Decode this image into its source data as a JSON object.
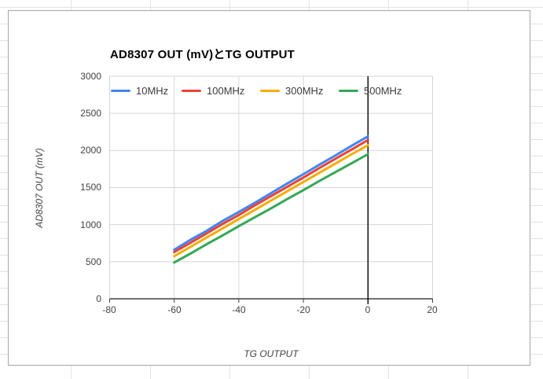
{
  "sheet": {
    "grid_color": "#e3e3e3",
    "chart_border_color": "#a6a6a6"
  },
  "chart": {
    "title": "AD8307 OUT (mV)とTG OUTPUT",
    "x_axis_title": "TG OUTPUT",
    "y_axis_title": "AD8307 OUT (mV)"
  },
  "chart_data": {
    "type": "line",
    "title": "AD8307 OUT (mV)とTG OUTPUT",
    "xlabel": "TG OUTPUT",
    "ylabel": "AD8307 OUT (mV)",
    "xlim": [
      -80,
      20
    ],
    "ylim": [
      0,
      3000
    ],
    "x_ticks": [
      -80,
      -60,
      -40,
      -20,
      0,
      20
    ],
    "y_ticks": [
      3000,
      2500,
      2000,
      1500,
      1000,
      500,
      0
    ],
    "x_tick_labels": [
      "-80",
      "-60",
      "-40",
      "-20",
      "0",
      "20"
    ],
    "y_tick_labels": [
      "3000",
      "2500",
      "2000",
      "1500",
      "1000",
      "500",
      "0"
    ],
    "grid": true,
    "legend_position": "top-inside",
    "zero_line_x": 0,
    "axis_color": "#424242",
    "zero_line_color": "#000000",
    "gridline_color": "#d5d5d5",
    "x": [
      -60,
      -55,
      -50,
      -45,
      -40,
      -35,
      -30,
      -25,
      -20,
      -15,
      -10,
      -5,
      0
    ],
    "series": [
      {
        "name": "10MHz",
        "color": "#4285f4",
        "values": [
          660,
          795,
          915,
          1050,
          1170,
          1295,
          1425,
          1555,
          1680,
          1810,
          1935,
          2065,
          2190
        ]
      },
      {
        "name": "100MHz",
        "color": "#ea4335",
        "values": [
          630,
          755,
          880,
          1010,
          1130,
          1260,
          1385,
          1510,
          1635,
          1765,
          1890,
          2015,
          2140
        ]
      },
      {
        "name": "300MHz",
        "color": "#f9ab00",
        "values": [
          575,
          700,
          825,
          950,
          1075,
          1200,
          1325,
          1450,
          1575,
          1700,
          1825,
          1950,
          2070
        ]
      },
      {
        "name": "500MHz",
        "color": "#34a853",
        "values": [
          490,
          610,
          735,
          855,
          980,
          1100,
          1220,
          1345,
          1465,
          1590,
          1710,
          1830,
          1950
        ]
      }
    ]
  }
}
